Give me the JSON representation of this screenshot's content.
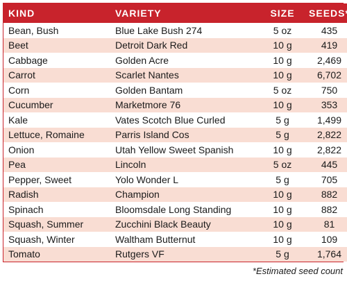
{
  "table": {
    "headers": {
      "kind": "KIND",
      "variety": "VARIETY",
      "size": "SIZE",
      "seeds": "SEEDS*"
    },
    "rows": [
      {
        "kind": "Bean, Bush",
        "variety": "Blue Lake Bush 274",
        "size": "5 oz",
        "seeds": "435"
      },
      {
        "kind": "Beet",
        "variety": "Detroit Dark Red",
        "size": "10 g",
        "seeds": "419"
      },
      {
        "kind": "Cabbage",
        "variety": "Golden Acre",
        "size": "10 g",
        "seeds": "2,469"
      },
      {
        "kind": "Carrot",
        "variety": "Scarlet Nantes",
        "size": "10 g",
        "seeds": "6,702"
      },
      {
        "kind": "Corn",
        "variety": "Golden Bantam",
        "size": "5 oz",
        "seeds": "750"
      },
      {
        "kind": "Cucumber",
        "variety": "Marketmore 76",
        "size": "10 g",
        "seeds": "353"
      },
      {
        "kind": "Kale",
        "variety": "Vates Scotch Blue Curled",
        "size": "5 g",
        "seeds": "1,499"
      },
      {
        "kind": "Lettuce, Romaine",
        "variety": "Parris Island Cos",
        "size": "5 g",
        "seeds": "2,822"
      },
      {
        "kind": "Onion",
        "variety": "Utah Yellow Sweet Spanish",
        "size": "10 g",
        "seeds": "2,822"
      },
      {
        "kind": "Pea",
        "variety": "Lincoln",
        "size": "5 oz",
        "seeds": "445"
      },
      {
        "kind": "Pepper, Sweet",
        "variety": "Yolo Wonder L",
        "size": "5 g",
        "seeds": "705"
      },
      {
        "kind": "Radish",
        "variety": "Champion",
        "size": "10 g",
        "seeds": "882"
      },
      {
        "kind": "Spinach",
        "variety": "Bloomsdale Long Standing",
        "size": "10 g",
        "seeds": "882"
      },
      {
        "kind": "Squash, Summer",
        "variety": "Zucchini Black Beauty",
        "size": "10 g",
        "seeds": "81"
      },
      {
        "kind": "Squash, Winter",
        "variety": "Waltham Butternut",
        "size": "10 g",
        "seeds": "109"
      },
      {
        "kind": "Tomato",
        "variety": "Rutgers VF",
        "size": "5 g",
        "seeds": "1,764"
      }
    ]
  },
  "footnote": "*Estimated seed count",
  "colors": {
    "header_bg": "#c8232c",
    "stripe_bg": "#f9ddd3"
  }
}
